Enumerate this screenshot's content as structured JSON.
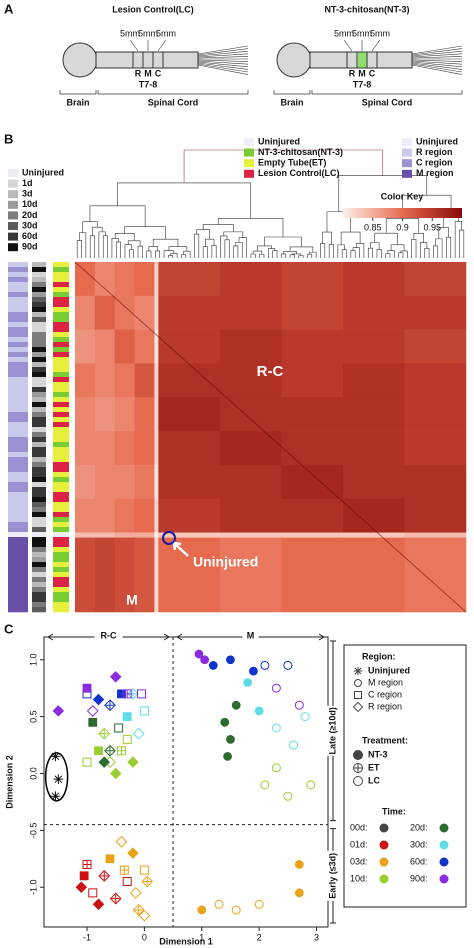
{
  "panel_labels": [
    "A",
    "B",
    "C"
  ],
  "diagram": {
    "left": {
      "title": "Lesion Control(LC)",
      "spacings": [
        "5mm",
        "5mm",
        "5mm"
      ],
      "regions": [
        "R",
        "M",
        "C"
      ],
      "level": "T7-8",
      "brain": "Brain",
      "cord": "Spinal Cord"
    },
    "right": {
      "title": "NT-3-chitosan(NT-3)",
      "spacings": [
        "5mm",
        "5mm",
        "5mm"
      ],
      "regions": [
        "R",
        "M",
        "C"
      ],
      "level": "T7-8",
      "brain": "Brain",
      "cord": "Spinal Cord"
    }
  },
  "chart_data": [
    {
      "type": "heatmap",
      "time_legend": [
        {
          "name": "Uninjured",
          "color": "#ececf5"
        },
        {
          "name": "1d",
          "color": "#d6d6d6"
        },
        {
          "name": "3d",
          "color": "#bababa"
        },
        {
          "name": "10d",
          "color": "#9c9c9c"
        },
        {
          "name": "20d",
          "color": "#7c7c7c"
        },
        {
          "name": "30d",
          "color": "#5c5c5c"
        },
        {
          "name": "60d",
          "color": "#383838"
        },
        {
          "name": "90d",
          "color": "#111111"
        }
      ],
      "treatment_legend": [
        {
          "name": "Uninjured",
          "color": "#efeff7"
        },
        {
          "name": "NT-3-chitosan(NT-3)",
          "color": "#7acc33"
        },
        {
          "name": "Empty Tube(ET)",
          "color": "#e6f03c"
        },
        {
          "name": "Lesion Control(LC)",
          "color": "#dd2244"
        }
      ],
      "region_legend": [
        {
          "name": "Uninjured",
          "color": "#eeeef8"
        },
        {
          "name": "R region",
          "color": "#c9c9e9"
        },
        {
          "name": "C region",
          "color": "#9a90d2"
        },
        {
          "name": "M region",
          "color": "#6a4fa8"
        }
      ],
      "color_key_title": "Color Key",
      "color_key_lim": [
        0.8,
        1.0
      ],
      "color_key_ticks": [
        0.85,
        0.9,
        0.95
      ],
      "annotations": {
        "rc": "R-C",
        "uninjured": "Uninjured",
        "m": "M"
      },
      "matrix": [
        [
          0.9,
          0.88,
          0.89,
          0.9,
          0.82,
          0.94,
          0.95,
          0.94,
          0.95,
          0.94
        ],
        [
          0.88,
          0.91,
          0.89,
          0.88,
          0.82,
          0.95,
          0.95,
          0.94,
          0.95,
          0.95
        ],
        [
          0.87,
          0.88,
          0.91,
          0.89,
          0.81,
          0.95,
          0.96,
          0.95,
          0.95,
          0.94
        ],
        [
          0.89,
          0.88,
          0.89,
          0.92,
          0.82,
          0.96,
          0.96,
          0.95,
          0.96,
          0.95
        ],
        [
          0.88,
          0.87,
          0.88,
          0.9,
          0.82,
          0.97,
          0.96,
          0.96,
          0.96,
          0.95
        ],
        [
          0.88,
          0.88,
          0.89,
          0.9,
          0.82,
          0.96,
          0.97,
          0.96,
          0.96,
          0.95
        ],
        [
          0.87,
          0.88,
          0.88,
          0.89,
          0.81,
          0.96,
          0.96,
          0.97,
          0.96,
          0.96
        ],
        [
          0.88,
          0.88,
          0.89,
          0.9,
          0.82,
          0.95,
          0.96,
          0.96,
          0.97,
          0.96
        ],
        [
          0.84,
          0.84,
          0.85,
          0.85,
          0.8,
          0.83,
          0.83,
          0.83,
          0.83,
          0.84
        ],
        [
          0.93,
          0.94,
          0.93,
          0.92,
          0.82,
          0.9,
          0.89,
          0.9,
          0.9,
          0.89
        ]
      ]
    },
    {
      "type": "scatter",
      "xlabel": "Dimension 1",
      "ylabel": "Dimension 2",
      "xlim": [
        -1.75,
        3.2
      ],
      "ylim": [
        -1.35,
        1.2
      ],
      "xticks": [
        -1,
        0,
        1,
        2,
        3
      ],
      "yticks": [
        {
          "value": 1,
          "label": "1.0"
        },
        {
          "value": 0.5,
          "label": "0.5"
        },
        {
          "value": 0,
          "label": "0.0"
        },
        {
          "value": -0.5,
          "label": "-0.5"
        },
        {
          "value": -1,
          "label": "-1.0"
        }
      ],
      "vlines": [
        0.5
      ],
      "hlines": [
        -0.45
      ],
      "annotations": {
        "left": "R-C",
        "right": "M",
        "late": "Late (≥10d)",
        "early": "Early (≤3d)"
      },
      "legend": {
        "region_title": "Region:",
        "regions": [
          "Uninjured",
          "M region",
          "C region",
          "R region"
        ],
        "treatment_title": "Treatment:",
        "treatments": [
          "NT-3",
          "ET",
          "LC"
        ],
        "time_title": "Time:"
      },
      "series": [
        {
          "name": "00d:",
          "color": "#444444",
          "x": [
            -1.55,
            -1.5,
            -1.55
          ],
          "y": [
            0.15,
            -0.05,
            -0.2
          ],
          "region": [
            "Uninjured",
            "Uninjured",
            "Uninjured"
          ],
          "treatment": [
            "NT-3",
            "NT-3",
            "NT-3"
          ]
        },
        {
          "name": "01d:",
          "color": "#cc1111",
          "x": [
            -1.05,
            -1.1,
            -0.9,
            -0.7,
            -0.5,
            -0.3,
            -0.8,
            -1.0
          ],
          "y": [
            -0.9,
            -1.0,
            -1.05,
            -0.9,
            -1.1,
            -0.95,
            -1.15,
            -0.8
          ],
          "region": [
            "C region",
            "R region",
            "C region",
            "R region",
            "R region",
            "C region",
            "R region",
            "C region"
          ],
          "treatment": [
            "NT-3",
            "NT-3",
            "LC",
            "ET",
            "ET",
            "LC",
            "NT-3",
            "ET"
          ]
        },
        {
          "name": "03d:",
          "color": "#e8a317",
          "x": [
            -0.6,
            -0.4,
            -0.2,
            0.0,
            0.05,
            -0.15,
            -0.35,
            -0.1,
            0.0,
            1.0,
            1.3,
            1.6,
            2.0,
            2.7,
            2.7
          ],
          "y": [
            -0.75,
            -0.6,
            -0.7,
            -0.85,
            -0.95,
            -1.05,
            -0.85,
            -1.2,
            -1.25,
            -1.2,
            -1.15,
            -1.2,
            -1.15,
            -0.8,
            -1.05
          ],
          "region": [
            "C region",
            "R region",
            "R region",
            "C region",
            "R region",
            "R region",
            "C region",
            "R region",
            "R region",
            "M region",
            "M region",
            "M region",
            "M region",
            "M region",
            "M region"
          ],
          "treatment": [
            "NT-3",
            "LC",
            "NT-3",
            "LC",
            "ET",
            "LC",
            "ET",
            "ET",
            "LC",
            "NT-3",
            "LC",
            "LC",
            "LC",
            "NT-3",
            "NT-3"
          ]
        },
        {
          "name": "10d:",
          "color": "#9acd32",
          "x": [
            -0.8,
            -0.6,
            -0.4,
            -0.2,
            -0.3,
            -0.7,
            -0.5,
            -1.0,
            2.1,
            2.5,
            2.9,
            2.3
          ],
          "y": [
            0.2,
            0.1,
            0.2,
            0.1,
            0.3,
            0.35,
            0.0,
            0.1,
            -0.1,
            -0.2,
            -0.1,
            0.05
          ],
          "region": [
            "C region",
            "R region",
            "C region",
            "R region",
            "C region",
            "R region",
            "R region",
            "C region",
            "M region",
            "M region",
            "M region",
            "M region"
          ],
          "treatment": [
            "NT-3",
            "LC",
            "ET",
            "NT-3",
            "LC",
            "ET",
            "NT-3",
            "LC",
            "LC",
            "LC",
            "LC",
            "LC"
          ]
        },
        {
          "name": "20d:",
          "color": "#2e6b2e",
          "x": [
            -0.9,
            -0.7,
            -0.45,
            -0.6,
            1.4,
            1.5,
            1.45,
            1.6
          ],
          "y": [
            0.45,
            0.1,
            0.4,
            0.2,
            0.45,
            0.3,
            0.15,
            0.6
          ],
          "region": [
            "C region",
            "R region",
            "C region",
            "R region",
            "M region",
            "M region",
            "M region",
            "M region"
          ],
          "treatment": [
            "NT-3",
            "NT-3",
            "LC",
            "ET",
            "NT-3",
            "NT-3",
            "NT-3",
            "NT-3"
          ]
        },
        {
          "name": "30d:",
          "color": "#5fdde6",
          "x": [
            -0.3,
            -0.1,
            -0.2,
            0.0,
            1.8,
            2.0,
            2.3,
            2.6,
            2.8
          ],
          "y": [
            0.5,
            0.35,
            0.7,
            0.55,
            0.8,
            0.55,
            0.4,
            0.25,
            0.5
          ],
          "region": [
            "C region",
            "R region",
            "R region",
            "C region",
            "M region",
            "M region",
            "M region",
            "M region",
            "M region"
          ],
          "treatment": [
            "NT-3",
            "LC",
            "ET",
            "LC",
            "NT-3",
            "NT-3",
            "LC",
            "LC",
            "LC"
          ]
        },
        {
          "name": "60d:",
          "color": "#1133cc",
          "x": [
            -0.8,
            -1.0,
            -0.6,
            -0.4,
            1.2,
            1.5,
            1.9,
            2.1,
            2.5
          ],
          "y": [
            0.65,
            0.7,
            0.6,
            0.7,
            0.95,
            1.0,
            0.9,
            0.95,
            0.95
          ],
          "region": [
            "R region",
            "C region",
            "R region",
            "C region",
            "M region",
            "M region",
            "M region",
            "M region",
            "M region"
          ],
          "treatment": [
            "NT-3",
            "LC",
            "ET",
            "NT-3",
            "NT-3",
            "NT-3",
            "NT-3",
            "LC",
            "LC"
          ]
        },
        {
          "name": "90d:",
          "color": "#8a2be2",
          "x": [
            -1.5,
            -1.0,
            -0.9,
            -0.5,
            -0.3,
            -0.05,
            0.95,
            1.05,
            2.3,
            2.7
          ],
          "y": [
            0.55,
            0.75,
            0.55,
            0.85,
            0.7,
            0.7,
            1.05,
            1.0,
            0.75,
            0.6
          ],
          "region": [
            "R region",
            "C region",
            "R region",
            "R region",
            "C region",
            "C region",
            "M region",
            "M region",
            "M region",
            "M region"
          ],
          "treatment": [
            "NT-3",
            "NT-3",
            "LC",
            "NT-3",
            "ET",
            "LC",
            "NT-3",
            "NT-3",
            "LC",
            "LC"
          ]
        }
      ]
    }
  ]
}
